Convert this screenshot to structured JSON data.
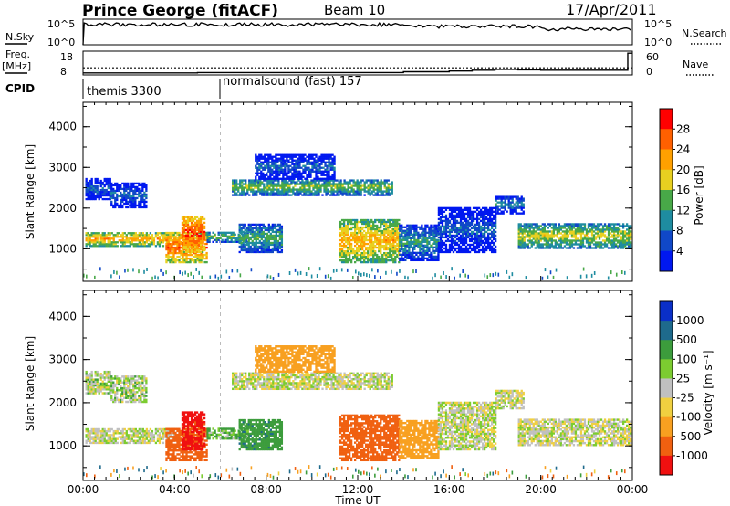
{
  "header": {
    "station": "Prince George (fitACF)",
    "beam": "Beam 10",
    "date": "17/Apr/2011"
  },
  "noise_panel": {
    "left_label": "N.Sky",
    "right_label": "N.Search",
    "ticks_left": [
      "10^5",
      "10^0"
    ],
    "ticks_right": [
      "10^5",
      "10^0"
    ]
  },
  "freq_panel": {
    "left_label_1": "Freq.",
    "left_label_2": "[MHz]",
    "right_label": "Nave",
    "ticks_left": [
      "18",
      "8"
    ],
    "ticks_right": [
      "60",
      "0"
    ],
    "frequency_mhz_series": {
      "time_hours": [
        0,
        0.05,
        24
      ],
      "values": [
        11,
        11,
        11
      ]
    },
    "nave_series": {
      "time_hours": [
        0,
        1,
        2,
        3,
        4,
        5,
        6,
        7,
        8,
        9,
        10,
        11,
        12,
        13,
        14,
        15,
        16,
        17,
        18,
        19,
        20,
        21,
        22,
        23,
        23.8,
        24
      ],
      "values": [
        5,
        5,
        5,
        5,
        5,
        6,
        6,
        6,
        6,
        6,
        6,
        6,
        6,
        6,
        8,
        8,
        10,
        12,
        14,
        13,
        12,
        12,
        12,
        12,
        55,
        55
      ]
    }
  },
  "cpid": {
    "label": "CPID",
    "programs": [
      {
        "name": "themis 3300",
        "start_hours": 0.0
      },
      {
        "name": "normalsound (fast) 157",
        "start_hours": 6.0
      }
    ]
  },
  "power_panel": {
    "ylabel": "Slant Range [km]",
    "yticks": [
      "4000",
      "3000",
      "2000",
      "1000"
    ],
    "colorbar_label": "Power [dB]",
    "colorbar_ticks": [
      "28",
      "24",
      "20",
      "16",
      "12",
      "8",
      "4"
    ],
    "colorbar_colors": [
      "#ff0000",
      "#ff6000",
      "#ffa000",
      "#e8d020",
      "#48a848",
      "#1e8ca0",
      "#1048c8",
      "#0018f0"
    ]
  },
  "velocity_panel": {
    "ylabel": "Slant Range [km]",
    "yticks": [
      "4000",
      "3000",
      "2000",
      "1000"
    ],
    "colorbar_label": "Velocity [m s⁻¹]",
    "colorbar_ticks": [
      "1000",
      "500",
      "100",
      "25",
      "-25",
      "-100",
      "-500",
      "-1000"
    ],
    "colorbar_colors": [
      "#0a2fc8",
      "#1e6a8c",
      "#3c9c3c",
      "#7ccc30",
      "#c0c0c0",
      "#f0d040",
      "#f8a020",
      "#f06010",
      "#f01010"
    ]
  },
  "xaxis": {
    "label": "Time UT",
    "ticks": [
      "00:00",
      "04:00",
      "08:00",
      "12:00",
      "16:00",
      "20:00",
      "00:00"
    ]
  },
  "chart_data": {
    "type": "heatmap",
    "title": "Prince George (fitACF)",
    "subtitle": "Beam 10",
    "date": "17/Apr/2011",
    "x_unit": "hours UT",
    "xlim": [
      0,
      24
    ],
    "ylim": [
      200,
      4600
    ],
    "echo_regions": [
      {
        "t0": 0.1,
        "t1": 4.0,
        "r0": 1050,
        "r1": 1400,
        "power_db": 22,
        "velocity": 0
      },
      {
        "t0": 0.1,
        "t1": 1.2,
        "r0": 2200,
        "r1": 2700,
        "power_db": 8,
        "velocity": 15
      },
      {
        "t0": 1.2,
        "t1": 2.8,
        "r0": 2000,
        "r1": 2600,
        "power_db": 8,
        "velocity": 20
      },
      {
        "t0": 3.6,
        "t1": 5.4,
        "r0": 650,
        "r1": 1400,
        "power_db": 26,
        "velocity": -600
      },
      {
        "t0": 4.3,
        "t1": 5.3,
        "r0": 900,
        "r1": 1800,
        "power_db": 28,
        "velocity": -800
      },
      {
        "t0": 5.4,
        "t1": 7.2,
        "r0": 1150,
        "r1": 1400,
        "power_db": 16,
        "velocity": 60
      },
      {
        "t0": 6.8,
        "t1": 8.7,
        "r0": 900,
        "r1": 1600,
        "power_db": 14,
        "velocity": 250
      },
      {
        "t0": 6.5,
        "t1": 13.5,
        "r0": 2300,
        "r1": 2700,
        "power_db": 16,
        "velocity": 0
      },
      {
        "t0": 7.5,
        "t1": 11.0,
        "r0": 2700,
        "r1": 3300,
        "power_db": 8,
        "velocity": -150
      },
      {
        "t0": 11.2,
        "t1": 13.8,
        "r0": 650,
        "r1": 1700,
        "power_db": 22,
        "velocity": -400
      },
      {
        "t0": 13.8,
        "t1": 15.5,
        "r0": 700,
        "r1": 1600,
        "power_db": 12,
        "velocity": -200
      },
      {
        "t0": 15.5,
        "t1": 18.0,
        "r0": 900,
        "r1": 2000,
        "power_db": 8,
        "velocity": 0
      },
      {
        "t0": 18.0,
        "t1": 19.2,
        "r0": 1850,
        "r1": 2300,
        "power_db": 10,
        "velocity": 0
      },
      {
        "t0": 19.0,
        "t1": 23.9,
        "r0": 1000,
        "r1": 1600,
        "power_db": 18,
        "velocity": 0
      }
    ]
  }
}
